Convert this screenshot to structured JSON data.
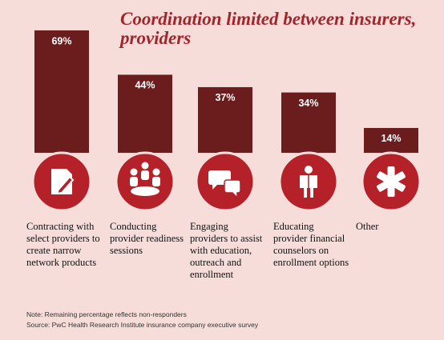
{
  "chart_data": {
    "type": "bar",
    "title": "Coordination limited between insurers, providers",
    "categories": [
      "Contracting with select providers to create narrow network products",
      "Conducting provider readiness sessions",
      "Engaging providers to assist with education, outreach and enrollment",
      "Educating provider financial counselors on enrollment options",
      "Other"
    ],
    "values": [
      69,
      44,
      37,
      34,
      14
    ],
    "value_labels": [
      "69%",
      "44%",
      "37%",
      "34%",
      "14%"
    ],
    "color": "#6b1d1e",
    "note": "Note: Remaining percentage reflects non-responders",
    "source": "Source: PwC Health Research Institute insurance company executive survey"
  }
}
